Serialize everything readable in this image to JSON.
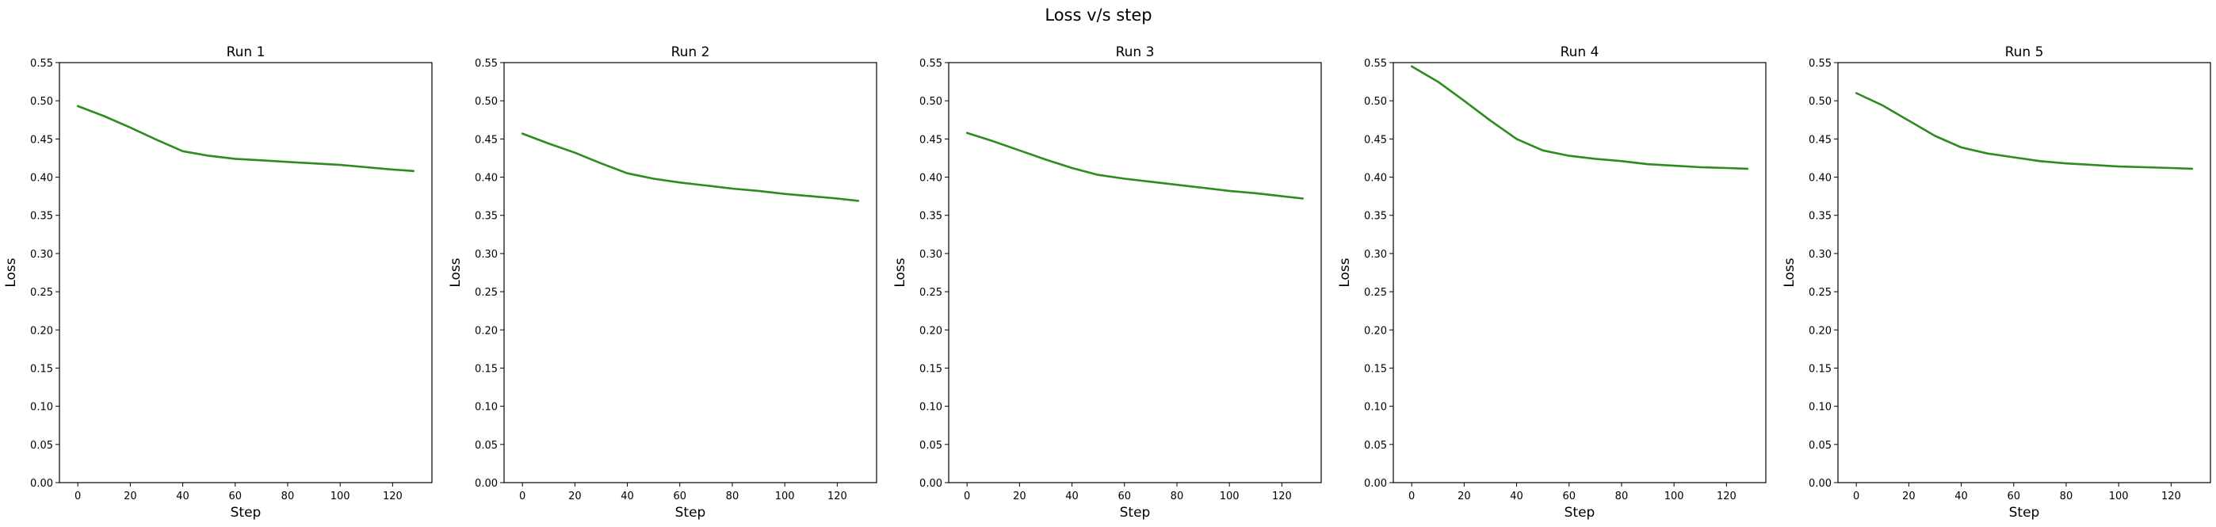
{
  "figure": {
    "suptitle": "Loss v/s step"
  },
  "colors": {
    "line": "#2e8b1f",
    "axes": "#000000",
    "background": "#ffffff"
  },
  "chart_data": [
    {
      "type": "line",
      "title": "Run 1",
      "xlabel": "Step",
      "ylabel": "Loss",
      "xlim": [
        -7,
        135
      ],
      "ylim": [
        0,
        0.55
      ],
      "xticks": [
        0,
        20,
        40,
        60,
        80,
        100,
        120
      ],
      "yticks": [
        0.0,
        0.05,
        0.1,
        0.15,
        0.2,
        0.25,
        0.3,
        0.35,
        0.4,
        0.45,
        0.5,
        0.55
      ],
      "grid": false,
      "series": [
        {
          "x": [
            0,
            10,
            20,
            30,
            40,
            50,
            60,
            70,
            80,
            90,
            100,
            110,
            120,
            128
          ],
          "y": [
            0.493,
            0.48,
            0.465,
            0.449,
            0.434,
            0.428,
            0.424,
            0.422,
            0.42,
            0.418,
            0.416,
            0.413,
            0.41,
            0.408
          ]
        }
      ]
    },
    {
      "type": "line",
      "title": "Run 2",
      "xlabel": "Step",
      "ylabel": "Loss",
      "xlim": [
        -7,
        135
      ],
      "ylim": [
        0,
        0.55
      ],
      "xticks": [
        0,
        20,
        40,
        60,
        80,
        100,
        120
      ],
      "yticks": [
        0.0,
        0.05,
        0.1,
        0.15,
        0.2,
        0.25,
        0.3,
        0.35,
        0.4,
        0.45,
        0.5,
        0.55
      ],
      "grid": false,
      "series": [
        {
          "x": [
            0,
            10,
            20,
            30,
            40,
            50,
            60,
            70,
            80,
            90,
            100,
            110,
            120,
            128
          ],
          "y": [
            0.457,
            0.444,
            0.432,
            0.418,
            0.405,
            0.398,
            0.393,
            0.389,
            0.385,
            0.382,
            0.378,
            0.375,
            0.372,
            0.369
          ]
        }
      ]
    },
    {
      "type": "line",
      "title": "Run 3",
      "xlabel": "Step",
      "ylabel": "Loss",
      "xlim": [
        -7,
        135
      ],
      "ylim": [
        0,
        0.55
      ],
      "xticks": [
        0,
        20,
        40,
        60,
        80,
        100,
        120
      ],
      "yticks": [
        0.0,
        0.05,
        0.1,
        0.15,
        0.2,
        0.25,
        0.3,
        0.35,
        0.4,
        0.45,
        0.5,
        0.55
      ],
      "grid": false,
      "series": [
        {
          "x": [
            0,
            10,
            20,
            30,
            40,
            50,
            60,
            70,
            80,
            90,
            100,
            110,
            120,
            128
          ],
          "y": [
            0.458,
            0.447,
            0.435,
            0.423,
            0.412,
            0.403,
            0.398,
            0.394,
            0.39,
            0.386,
            0.382,
            0.379,
            0.375,
            0.372
          ]
        }
      ]
    },
    {
      "type": "line",
      "title": "Run 4",
      "xlabel": "Step",
      "ylabel": "Loss",
      "xlim": [
        -7,
        135
      ],
      "ylim": [
        0,
        0.55
      ],
      "xticks": [
        0,
        20,
        40,
        60,
        80,
        100,
        120
      ],
      "yticks": [
        0.0,
        0.05,
        0.1,
        0.15,
        0.2,
        0.25,
        0.3,
        0.35,
        0.4,
        0.45,
        0.5,
        0.55
      ],
      "grid": false,
      "series": [
        {
          "x": [
            0,
            10,
            20,
            30,
            40,
            50,
            60,
            70,
            80,
            90,
            100,
            110,
            120,
            128
          ],
          "y": [
            0.545,
            0.525,
            0.5,
            0.474,
            0.45,
            0.435,
            0.428,
            0.424,
            0.421,
            0.417,
            0.415,
            0.413,
            0.412,
            0.411
          ]
        }
      ]
    },
    {
      "type": "line",
      "title": "Run 5",
      "xlabel": "Step",
      "ylabel": "Loss",
      "xlim": [
        -7,
        135
      ],
      "ylim": [
        0,
        0.55
      ],
      "xticks": [
        0,
        20,
        40,
        60,
        80,
        100,
        120
      ],
      "yticks": [
        0.0,
        0.05,
        0.1,
        0.15,
        0.2,
        0.25,
        0.3,
        0.35,
        0.4,
        0.45,
        0.5,
        0.55
      ],
      "grid": false,
      "series": [
        {
          "x": [
            0,
            10,
            20,
            30,
            40,
            50,
            60,
            70,
            80,
            90,
            100,
            110,
            120,
            128
          ],
          "y": [
            0.51,
            0.494,
            0.474,
            0.454,
            0.439,
            0.431,
            0.426,
            0.421,
            0.418,
            0.416,
            0.414,
            0.413,
            0.412,
            0.411
          ]
        }
      ]
    }
  ]
}
